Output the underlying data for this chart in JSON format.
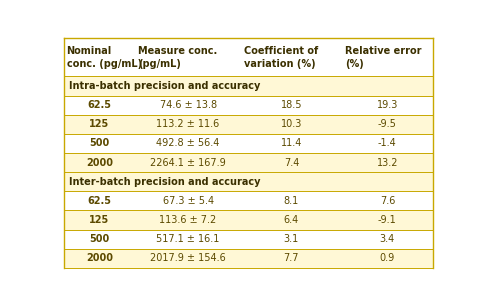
{
  "headers": [
    "Nominal\nconc. (pg/mL)",
    "Measure conc.\n(pg/mL)",
    "Coefficient of\nvariation (%)",
    "Relative error\n(%)"
  ],
  "section1_label": "Intra-batch precision and accuracy",
  "section2_label": "Inter-batch precision and accuracy",
  "intra_rows": [
    [
      "62.5",
      "74.6 ± 13.8",
      "18.5",
      "19.3"
    ],
    [
      "125",
      "113.2 ± 11.6",
      "10.3",
      "-9.5"
    ],
    [
      "500",
      "492.8 ± 56.4",
      "11.4",
      "-1.4"
    ],
    [
      "2000",
      "2264.1 ± 167.9",
      "7.4",
      "13.2"
    ]
  ],
  "inter_rows": [
    [
      "62.5",
      "67.3 ± 5.4",
      "8.1",
      "7.6"
    ],
    [
      "125",
      "113.6 ± 7.2",
      "6.4",
      "-9.1"
    ],
    [
      "500",
      "517.1 ± 16.1",
      "3.1",
      "3.4"
    ],
    [
      "2000",
      "2017.9 ± 154.6",
      "7.7",
      "0.9"
    ]
  ],
  "bg_white": "#FFFFFF",
  "bg_yellow": "#FFF8D6",
  "text_color": "#5C4A00",
  "border_color": "#C8A800",
  "header_text_color": "#3B3000",
  "figsize": [
    4.84,
    3.03
  ],
  "dpi": 100
}
